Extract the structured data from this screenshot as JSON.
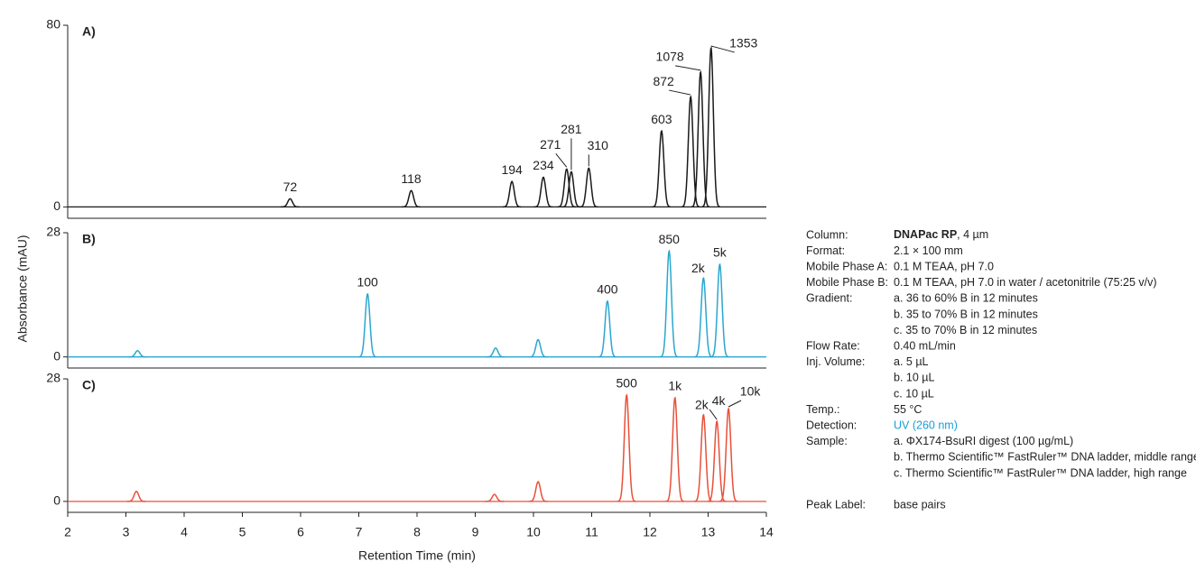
{
  "y_label": "Absorbance (mAU)",
  "chart_data": [
    {
      "type": "chromatogram",
      "title": "A)",
      "color": "#1a1a1a",
      "x": [
        5.82,
        7.9,
        9.63,
        10.17,
        10.57,
        10.65,
        10.95,
        12.2,
        12.7,
        12.87,
        13.05
      ],
      "values": [
        3.6,
        7.2,
        11.2,
        13.1,
        16.7,
        15.5,
        17.1,
        33.5,
        48.6,
        59.4,
        70.1
      ],
      "peak_labels": [
        "72",
        "118",
        "194",
        "234",
        "271",
        "281",
        "310",
        "603",
        "872",
        "1078",
        "1353"
      ],
      "xlim": [
        2,
        14
      ],
      "ylim": [
        -5,
        80
      ],
      "yticks": [
        0,
        80
      ]
    },
    {
      "type": "chromatogram",
      "title": "B)",
      "color": "#2aa7d0",
      "x": [
        3.2,
        7.15,
        9.35,
        10.08,
        11.27,
        12.33,
        12.92,
        13.2
      ],
      "values": [
        1.4,
        14.2,
        2.0,
        3.9,
        12.6,
        23.9,
        17.8,
        20.9
      ],
      "peak_labels": [
        null,
        "100",
        null,
        null,
        "400",
        "850",
        "2k",
        "5k"
      ],
      "xlim": [
        2,
        14
      ],
      "ylim": [
        -2.5,
        28
      ],
      "yticks": [
        0,
        28
      ]
    },
    {
      "type": "chromatogram",
      "title": "C)",
      "color": "#e8503a",
      "x": [
        3.18,
        9.33,
        10.08,
        11.6,
        12.43,
        12.92,
        13.15,
        13.35
      ],
      "values": [
        2.3,
        1.6,
        4.5,
        24.3,
        23.7,
        19.8,
        18.3,
        21.2
      ],
      "peak_labels": [
        null,
        null,
        null,
        "500",
        "1k",
        "2k",
        "4k",
        "10k"
      ],
      "xlim": [
        2,
        14
      ],
      "ylim": [
        -2.5,
        28
      ],
      "yticks": [
        0,
        28
      ],
      "xticks": [
        2,
        3,
        4,
        5,
        6,
        7,
        8,
        9,
        10,
        11,
        12,
        13,
        14
      ],
      "xlabel": "Retention Time (min)"
    }
  ],
  "conditions": {
    "rows": [
      {
        "label": "Column:",
        "bold": "DNAPac RP",
        "lines": [
          ", 4 µm"
        ]
      },
      {
        "label": "Format:",
        "lines": [
          "2.1 × 100 mm"
        ]
      },
      {
        "label": "Mobile Phase A:",
        "lines": [
          "0.1 M TEAA, pH 7.0"
        ]
      },
      {
        "label": "Mobile Phase B:",
        "lines": [
          "0.1 M TEAA, pH 7.0 in water / acetonitrile (75:25 v/v)"
        ]
      },
      {
        "label": "Gradient:",
        "lines": [
          "a. 36 to 60% B in 12 minutes",
          "b. 35 to 70% B in 12 minutes",
          "c. 35 to 70% B in 12 minutes"
        ]
      },
      {
        "label": "Flow Rate:",
        "lines": [
          "0.40 mL/min"
        ]
      },
      {
        "label": "Inj. Volume:",
        "lines": [
          "a. 5 µL",
          "b. 10 µL",
          "c. 10 µL"
        ]
      },
      {
        "label": "Temp.:",
        "lines": [
          "55 °C"
        ]
      },
      {
        "label": "Detection:",
        "lines": [
          "UV (260 nm)"
        ],
        "color": "#1a9ed6"
      },
      {
        "label": "Sample:",
        "lines": [
          "a. ΦX174-BsuRI digest (100 µg/mL)",
          "b. Thermo Scientific™ FastRuler™ DNA ladder, middle range",
          "c. Thermo Scientific™ FastRuler™ DNA ladder, high range"
        ]
      }
    ],
    "peak_label_row": {
      "label": "Peak Label:",
      "lines": [
        "base pairs"
      ]
    }
  }
}
